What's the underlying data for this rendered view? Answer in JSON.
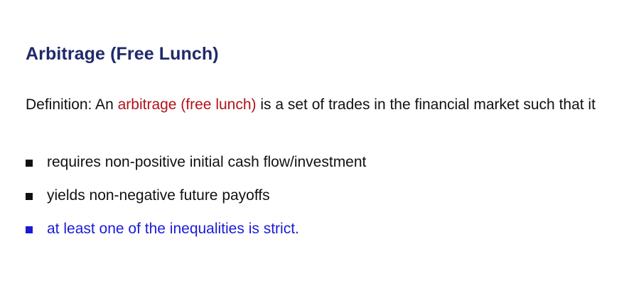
{
  "slide": {
    "title": "Arbitrage (Free Lunch)",
    "definition": {
      "before": "Definition: An ",
      "highlight": "arbitrage (free lunch)",
      "after": " is a set of trades in the financial market such that it"
    },
    "bullets": [
      {
        "text": "requires non-positive initial cash flow/investment"
      },
      {
        "text": "yields non-negative future payoffs"
      },
      {
        "text": "at least one of the inequalities is strict."
      }
    ]
  },
  "colors": {
    "title": "#1f2a6b",
    "body_text": "#111111",
    "highlight": "#b3121a",
    "emphasis_blue": "#1a1ad8"
  }
}
